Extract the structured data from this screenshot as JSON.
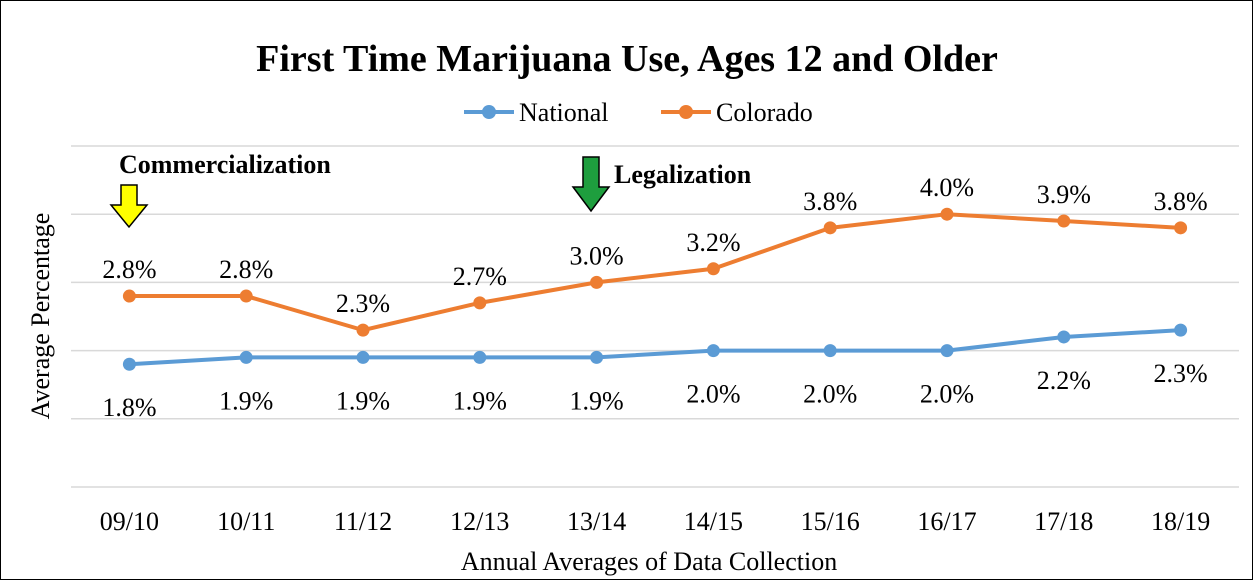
{
  "chart_data": {
    "type": "line",
    "title": "First Time Marijuana Use, Ages 12 and Older",
    "xlabel": "Annual Averages of Data Collection",
    "ylabel": "Average Percentage",
    "categories": [
      "09/10",
      "10/11",
      "11/12",
      "12/13",
      "13/14",
      "14/15",
      "15/16",
      "16/17",
      "17/18",
      "18/19"
    ],
    "series": [
      {
        "name": "National",
        "color": "#5b9bd5",
        "values": [
          1.8,
          1.9,
          1.9,
          1.9,
          1.9,
          2.0,
          2.0,
          2.0,
          2.2,
          2.3
        ],
        "labels": [
          "1.8%",
          "1.9%",
          "1.9%",
          "1.9%",
          "1.9%",
          "2.0%",
          "2.0%",
          "2.0%",
          "2.2%",
          "2.3%"
        ]
      },
      {
        "name": "Colorado",
        "color": "#ed7d31",
        "values": [
          2.8,
          2.8,
          2.3,
          2.7,
          3.0,
          3.2,
          3.8,
          4.0,
          3.9,
          3.8
        ],
        "labels": [
          "2.8%",
          "2.8%",
          "2.3%",
          "2.7%",
          "3.0%",
          "3.2%",
          "3.8%",
          "4.0%",
          "3.9%",
          "3.8%"
        ]
      }
    ],
    "ylim": [
      0,
      5
    ],
    "grid": true,
    "legend": "top-center",
    "annotations": [
      {
        "text": "Commercialization",
        "category": "09/10",
        "arrow_color": "#ffff00"
      },
      {
        "text": "Legalization",
        "category": "13/14",
        "arrow_color": "#1e9e3e"
      }
    ]
  }
}
